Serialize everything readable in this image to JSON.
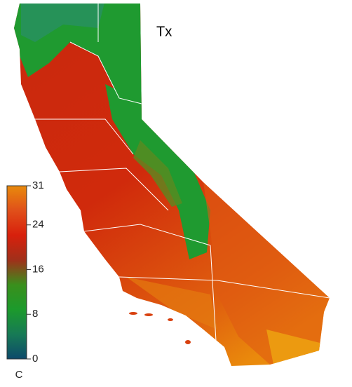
{
  "map": {
    "title": "Tx",
    "colorbar": {
      "label": "C",
      "lim": [
        0,
        31
      ],
      "ticks": [
        0,
        8,
        16,
        24,
        31
      ],
      "colors": [
        "#0d4a6b",
        "#177a55",
        "#1c9a2c",
        "#3a8f1c",
        "#a0301a",
        "#d8200c",
        "#e0501a",
        "#e88a0c"
      ]
    }
  }
}
